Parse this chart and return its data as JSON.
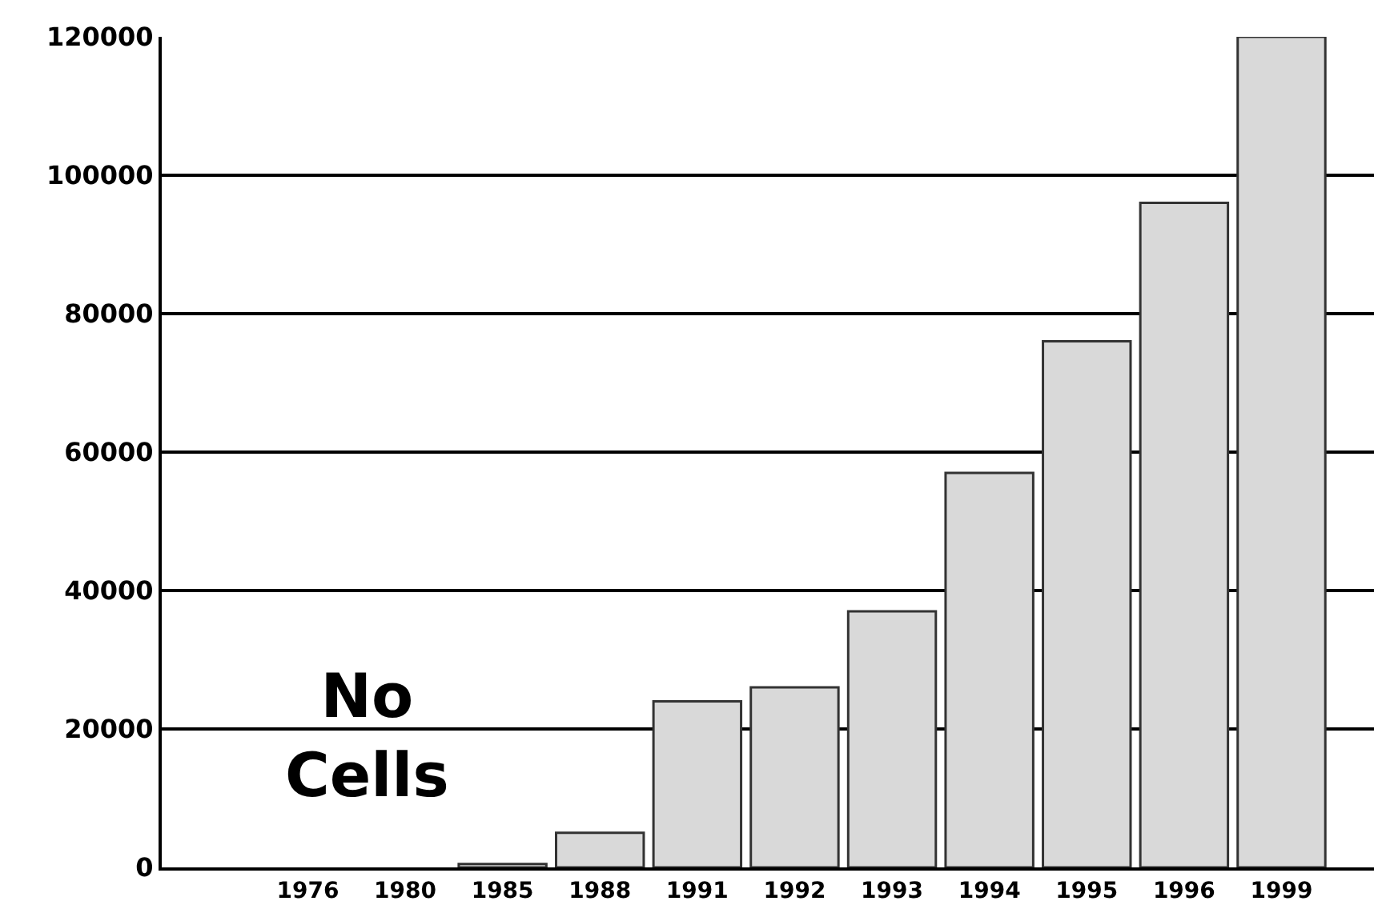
{
  "chart_data": {
    "type": "bar",
    "categories": [
      "1976",
      "1980",
      "1985",
      "1988",
      "1991",
      "1992",
      "1993",
      "1994",
      "1995",
      "1996",
      "1999"
    ],
    "values": [
      null,
      null,
      500,
      5000,
      24000,
      26000,
      37000,
      57000,
      76000,
      96000,
      120000
    ],
    "color": "#d9d9d9",
    "ylim": [
      0,
      120000
    ],
    "yticks": [
      0,
      20000,
      40000,
      60000,
      80000,
      100000,
      120000
    ],
    "grid": "y",
    "legend": false,
    "annotations": [
      "No\nCells"
    ]
  }
}
